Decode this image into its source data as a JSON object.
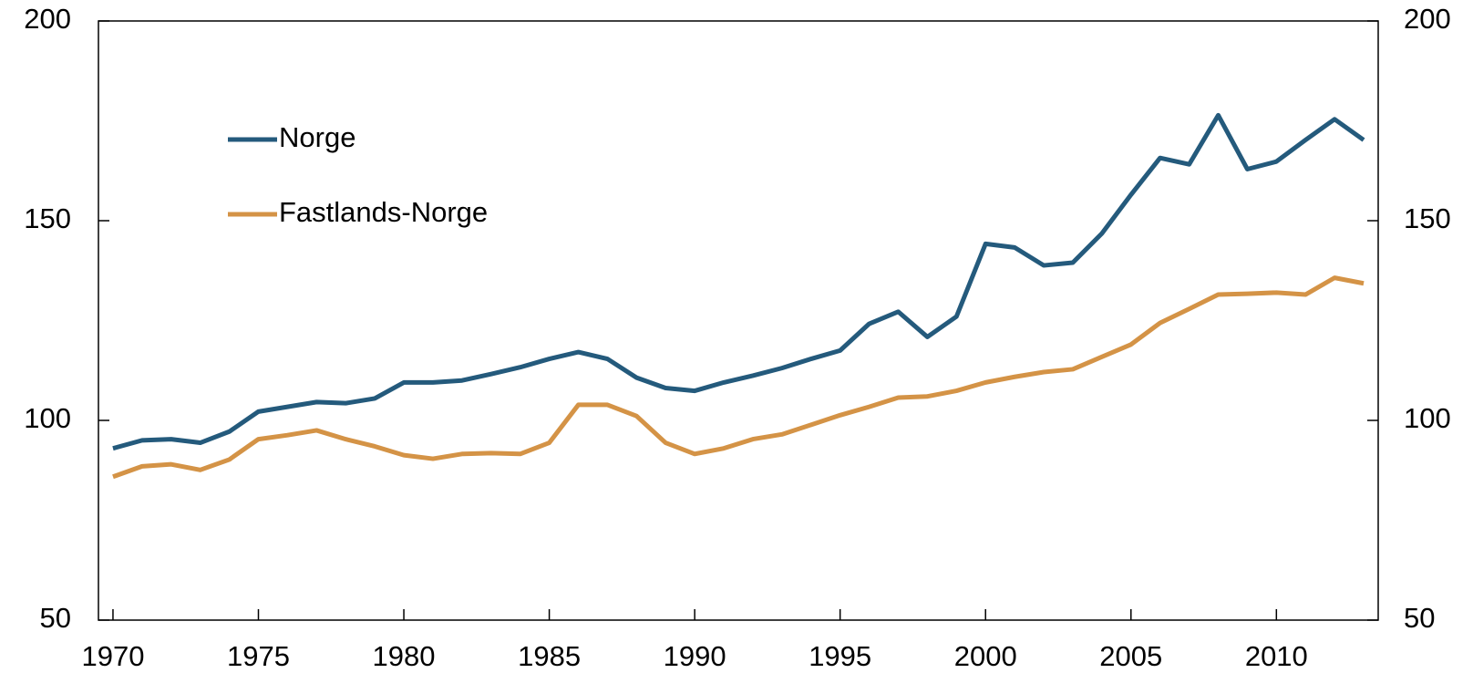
{
  "chart_data": {
    "type": "line",
    "x": [
      1970,
      1971,
      1972,
      1973,
      1974,
      1975,
      1976,
      1977,
      1978,
      1979,
      1980,
      1981,
      1982,
      1983,
      1984,
      1985,
      1986,
      1987,
      1988,
      1989,
      1990,
      1991,
      1992,
      1993,
      1994,
      1995,
      1996,
      1997,
      1998,
      1999,
      2000,
      2001,
      2002,
      2003,
      2004,
      2005,
      2006,
      2007,
      2008,
      2009,
      2010,
      2011,
      2012,
      2013
    ],
    "series": [
      {
        "name": "Norge",
        "color": "#245a7c",
        "values": [
          93,
          95,
          95.3,
          94.4,
          97.2,
          102.2,
          103.4,
          104.6,
          104.3,
          105.5,
          109.5,
          109.5,
          110,
          111.6,
          113.3,
          115.4,
          117.1,
          115.4,
          110.7,
          108.1,
          107.4,
          109.5,
          111.2,
          113.1,
          115.4,
          117.5,
          124.2,
          127.2,
          120.9,
          126,
          144.2,
          143.3,
          138.8,
          139.5,
          146.8,
          156.5,
          165.7,
          164.1,
          176.4,
          162.9,
          164.8,
          170.2,
          175.4,
          170.2
        ]
      },
      {
        "name": "Fastlands-Norge",
        "color": "#d49346",
        "values": [
          85.9,
          88.5,
          89,
          87.6,
          90.2,
          95.3,
          96.3,
          97.5,
          95.3,
          93.5,
          91.3,
          90.4,
          91.6,
          91.8,
          91.6,
          94.4,
          103.9,
          103.9,
          101.1,
          94.4,
          91.6,
          93,
          95.3,
          96.5,
          98.9,
          101.3,
          103.4,
          105.7,
          106,
          107.4,
          109.5,
          110.9,
          112.1,
          112.8,
          115.9,
          119,
          124.4,
          127.9,
          131.5,
          131.7,
          132,
          131.5,
          135.7,
          134.3
        ]
      }
    ],
    "xlim": [
      1969.5,
      2013.5
    ],
    "xticks": [
      1970,
      1975,
      1980,
      1985,
      1990,
      1995,
      2000,
      2005,
      2010
    ],
    "ylim": [
      50,
      200
    ],
    "yticks": [
      50,
      100,
      150,
      200
    ],
    "y2lim": [
      50,
      200
    ],
    "y2ticks": [
      50,
      100,
      150,
      200
    ],
    "legend": "upper left"
  }
}
